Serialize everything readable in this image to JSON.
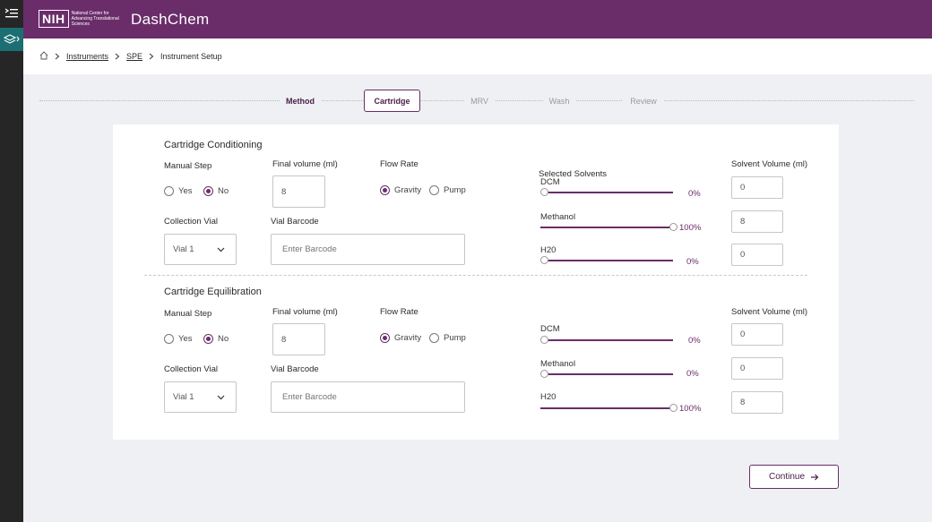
{
  "app": {
    "title": "DashChem",
    "logo": {
      "mark": "NIH",
      "org": "National Center for Advancing Translational Sciences"
    }
  },
  "breadcrumb": {
    "home_icon": "home-icon",
    "items": [
      "Instruments",
      "SPE",
      "Instrument Setup"
    ]
  },
  "steps": [
    {
      "label": "Method",
      "state": "done"
    },
    {
      "label": "Cartridge",
      "state": "active"
    },
    {
      "label": "MRV",
      "state": "pending"
    },
    {
      "label": "Wash",
      "state": "pending"
    },
    {
      "label": "Review",
      "state": "pending"
    }
  ],
  "labels": {
    "manual_step": "Manual Step",
    "final_volume": "Final volume (ml)",
    "flow_rate": "Flow Rate",
    "collection_vial": "Collection Vial",
    "vial_barcode": "Vial Barcode",
    "solvent_volume": "Solvent Volume (ml)",
    "selected_solvents": "Selected Solvents",
    "yes": "Yes",
    "no": "No",
    "gravity": "Gravity",
    "pump": "Pump"
  },
  "conditioning": {
    "title": "Cartridge Conditioning",
    "manual_step": "No",
    "final_volume": "8",
    "flow_rate": "Gravity",
    "collection_vial": "Vial 1",
    "barcode_placeholder": "Enter Barcode",
    "solvents": [
      {
        "name": "DCM",
        "percent": 0,
        "percent_label": "0%",
        "volume": "0"
      },
      {
        "name": "Methanol",
        "percent": 100,
        "percent_label": "100%",
        "volume": "8"
      },
      {
        "name": "H20",
        "percent": 0,
        "percent_label": "0%",
        "volume": "0"
      }
    ]
  },
  "equilibration": {
    "title": "Cartridge Equilibration",
    "manual_step": "No",
    "final_volume": "8",
    "flow_rate": "Gravity",
    "collection_vial": "Vial 1",
    "barcode_placeholder": "Enter Barcode",
    "solvents": [
      {
        "name": "DCM",
        "percent": 0,
        "percent_label": "0%",
        "volume": "0"
      },
      {
        "name": "Methanol",
        "percent": 0,
        "percent_label": "0%",
        "volume": "0"
      },
      {
        "name": "H20",
        "percent": 100,
        "percent_label": "100%",
        "volume": "8"
      }
    ]
  },
  "actions": {
    "continue": "Continue"
  },
  "colors": {
    "brand": "#6a2d6a",
    "rail": "#262626",
    "active_rail": "#1b6f73"
  }
}
